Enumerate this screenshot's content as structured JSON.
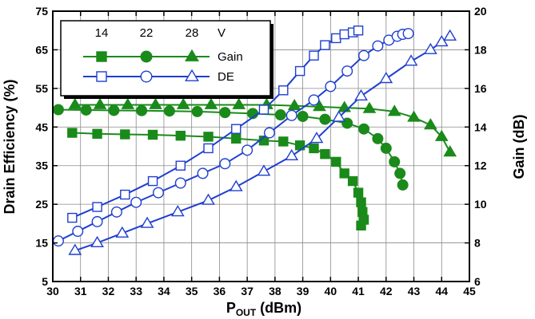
{
  "chart_data": {
    "type": "line",
    "x_label": {
      "main": "P",
      "sub": "OUT",
      "rest": " (dBm)"
    },
    "y_label_left": "Drain Efficiency (%)",
    "y_label_right": "Gain (dB)",
    "x_range": [
      30,
      45
    ],
    "y_left_range": [
      5,
      75
    ],
    "y_right_range": [
      6,
      20
    ],
    "x_ticks": [
      "30",
      "31",
      "32",
      "33",
      "34",
      "35",
      "36",
      "37",
      "38",
      "39",
      "40",
      "41",
      "42",
      "43",
      "44",
      "45"
    ],
    "y_left_ticks": [
      "5",
      "15",
      "25",
      "35",
      "45",
      "55",
      "65",
      "75"
    ],
    "y_right_ticks": [
      "6",
      "8",
      "10",
      "12",
      "14",
      "16",
      "18",
      "20"
    ],
    "grid": true,
    "legend": {
      "headers": [
        "14",
        "22",
        "28",
        "V"
      ],
      "rows": [
        "Gain",
        "DE"
      ]
    },
    "colors": {
      "gain": "#1a8a1a",
      "de": "#1f3fcf"
    },
    "series": [
      {
        "name": "14 V Gain",
        "axis": "right",
        "kind": "gain",
        "marker": "square",
        "x": [
          30.7,
          31.6,
          32.6,
          33.6,
          34.6,
          35.6,
          36.6,
          37.6,
          38.3,
          38.9,
          39.4,
          39.8,
          40.2,
          40.5,
          40.8,
          41.0,
          41.1,
          41.15,
          41.2,
          41.1
        ],
        "y": [
          13.7,
          13.65,
          13.62,
          13.6,
          13.55,
          13.5,
          13.4,
          13.3,
          13.25,
          13.05,
          12.9,
          12.6,
          12.2,
          11.6,
          11.2,
          10.6,
          10.1,
          9.6,
          9.2,
          8.9
        ]
      },
      {
        "name": "22 V Gain",
        "axis": "right",
        "kind": "gain",
        "marker": "circle",
        "x": [
          30.2,
          31.2,
          32.2,
          33.2,
          34.2,
          35.2,
          36.2,
          37.2,
          38.2,
          39.0,
          39.8,
          40.6,
          41.2,
          41.7,
          42.0,
          42.3,
          42.5,
          42.6
        ],
        "y": [
          14.9,
          14.88,
          14.86,
          14.85,
          14.83,
          14.8,
          14.75,
          14.7,
          14.63,
          14.55,
          14.4,
          14.2,
          13.9,
          13.4,
          12.9,
          12.2,
          11.6,
          11.0
        ],
        "x_override": [
          30.2,
          31.2,
          32.2,
          33.2,
          34.2,
          35.2,
          36.2,
          37.2,
          38.2,
          39.0,
          39.8,
          40.6,
          41.2,
          41.7,
          42.0,
          42.3,
          42.5,
          42.6
        ]
      },
      {
        "name": "28 V Gain",
        "axis": "right",
        "kind": "gain",
        "marker": "triangle",
        "x": [
          30.8,
          31.7,
          32.7,
          33.7,
          34.7,
          35.7,
          36.7,
          37.7,
          38.7,
          39.6,
          40.5,
          41.4,
          42.3,
          43.0,
          43.6,
          44.0,
          44.3
        ],
        "y": [
          15.15,
          15.15,
          15.15,
          15.15,
          15.15,
          15.15,
          15.15,
          15.15,
          15.1,
          15.05,
          15.0,
          14.95,
          14.8,
          14.5,
          14.1,
          13.5,
          12.7
        ]
      },
      {
        "name": "14 V DE",
        "axis": "left",
        "kind": "de",
        "marker": "square",
        "x": [
          30.7,
          31.6,
          32.6,
          33.6,
          34.6,
          35.6,
          36.6,
          37.6,
          38.3,
          38.9,
          39.4,
          39.8,
          40.2,
          40.5,
          40.8,
          41.0
        ],
        "y": [
          21.5,
          24.3,
          27.5,
          31.0,
          35.0,
          39.5,
          44.5,
          49.5,
          54.5,
          59.5,
          63.5,
          66.2,
          68.0,
          69.0,
          69.5,
          70.0
        ]
      },
      {
        "name": "22 V DE",
        "axis": "left",
        "kind": "de",
        "marker": "circle",
        "x": [
          30.2,
          30.9,
          31.6,
          32.3,
          33.0,
          33.8,
          34.6,
          35.4,
          36.2,
          37.0,
          37.8,
          38.6,
          39.4,
          40.0,
          40.6,
          41.2,
          41.7,
          42.1,
          42.4,
          42.6,
          42.8
        ],
        "y": [
          15.5,
          18.0,
          20.5,
          23.0,
          25.5,
          28.0,
          30.5,
          33.0,
          35.5,
          39.0,
          43.5,
          48.0,
          52.0,
          55.5,
          59.5,
          63.5,
          66.0,
          67.5,
          68.5,
          69.0,
          69.2
        ]
      },
      {
        "name": "28 V DE",
        "axis": "left",
        "kind": "de",
        "marker": "triangle",
        "x": [
          30.8,
          31.6,
          32.5,
          33.4,
          34.5,
          35.6,
          36.6,
          37.6,
          38.6,
          39.5,
          40.3,
          41.1,
          42.0,
          42.9,
          43.6,
          44.0,
          44.3
        ],
        "y": [
          13.0,
          15.0,
          17.5,
          20.0,
          23.0,
          26.0,
          29.5,
          33.5,
          37.5,
          42.0,
          47.5,
          53.0,
          57.5,
          62.0,
          65.0,
          67.0,
          68.5
        ]
      }
    ]
  }
}
